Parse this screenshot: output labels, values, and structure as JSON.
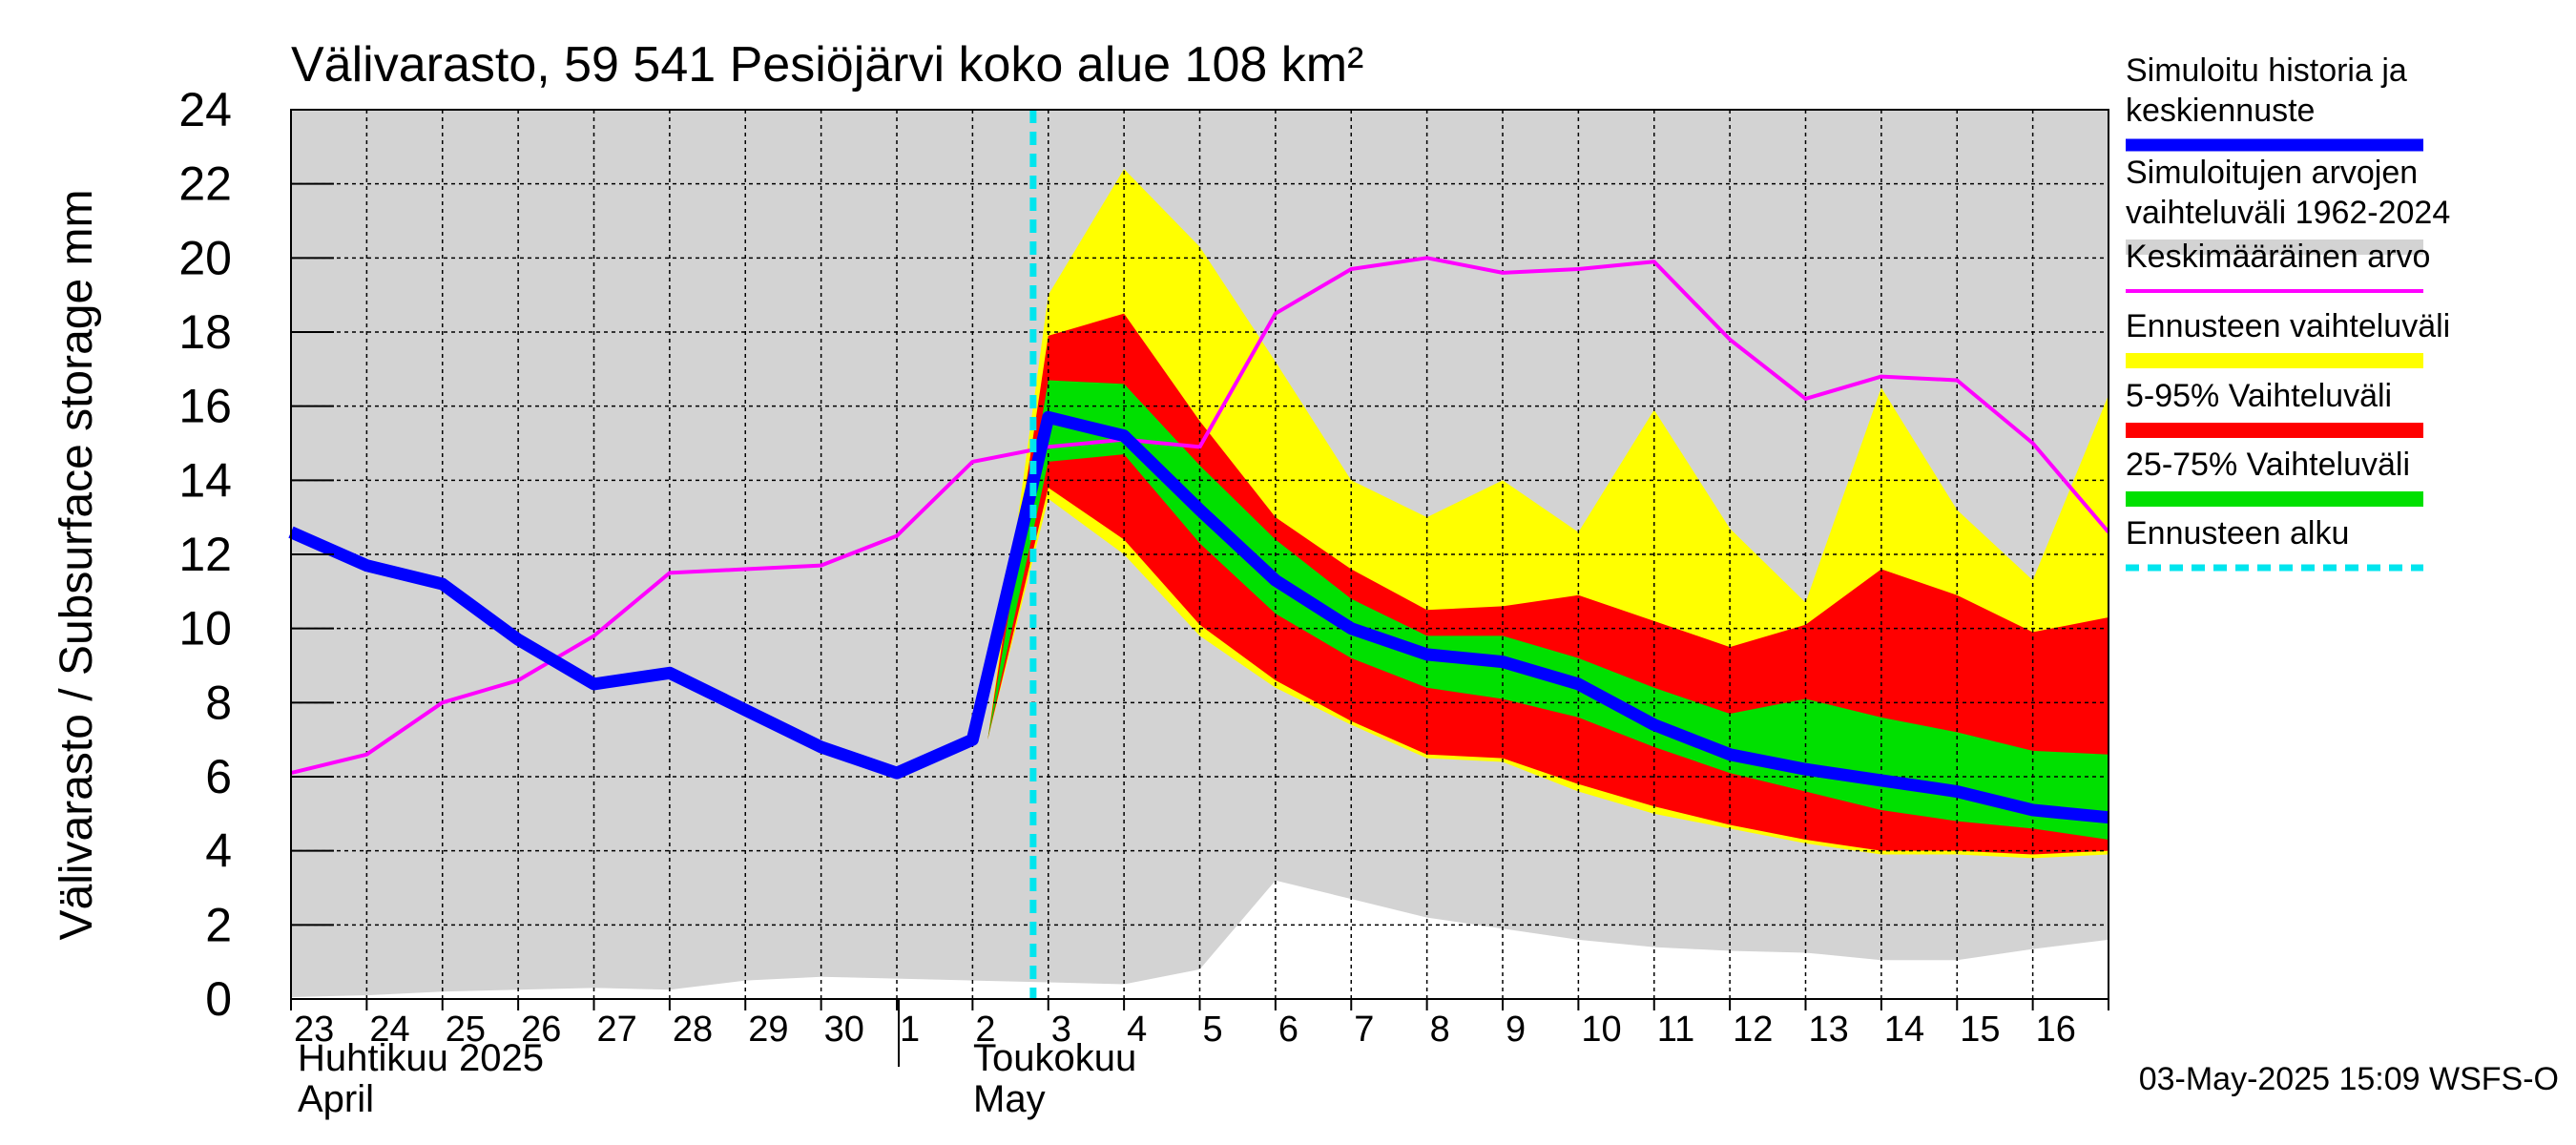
{
  "chart_data": {
    "type": "area",
    "title": "Välivarasto, 59 541 Pesiöjärvi koko alue 108 km²",
    "ylabel": "Välivarasto / Subsurface storage  mm",
    "xlabel": "",
    "ylim": [
      0,
      24
    ],
    "yticks": [
      0,
      2,
      4,
      6,
      8,
      10,
      12,
      14,
      16,
      18,
      20,
      22,
      24
    ],
    "grid": true,
    "legend_position": "right",
    "x_tick_labels": [
      "23",
      "24",
      "25",
      "26",
      "27",
      "28",
      "29",
      "30",
      "1",
      "2",
      "3",
      "4",
      "5",
      "6",
      "7",
      "8",
      "9",
      "10",
      "11",
      "12",
      "13",
      "14",
      "15",
      "16"
    ],
    "month_labels": [
      {
        "fi": "Huhtikuu  2025",
        "en": "April"
      },
      {
        "fi": "Toukokuu",
        "en": "May"
      }
    ],
    "forecast_start_day": 9.8,
    "series": [
      {
        "name": "Simuloitujen arvojen vaihteluväli 1962-2024",
        "color": "#d3d3d3",
        "x": [
          0,
          1,
          2,
          3,
          4,
          5,
          6,
          7,
          8,
          9,
          10,
          11,
          12,
          13,
          14,
          15,
          16,
          17,
          18,
          19,
          20,
          21,
          22,
          23,
          24
        ],
        "lower": [
          0.05,
          0.1,
          0.2,
          0.25,
          0.3,
          0.25,
          0.5,
          0.6,
          0.55,
          0.5,
          0.45,
          0.4,
          0.8,
          3.2,
          2.7,
          2.2,
          1.9,
          1.6,
          1.4,
          1.3,
          1.25,
          1.05,
          1.05,
          1.35,
          1.6
        ],
        "upper": [
          24,
          24,
          24,
          24,
          24,
          24,
          24,
          24,
          24,
          24,
          24,
          24,
          24,
          24,
          24,
          24,
          24,
          24,
          24,
          24,
          24,
          24,
          24,
          24,
          24
        ]
      },
      {
        "name": "Ennusteen vaihteluväli",
        "color": "#ffff00",
        "x": [
          9.2,
          10,
          11,
          12,
          13,
          14,
          15,
          16,
          17,
          18,
          19,
          20,
          21,
          22,
          23,
          24
        ],
        "lower": [
          7.0,
          13.5,
          12.0,
          9.8,
          8.4,
          7.4,
          6.5,
          6.4,
          5.6,
          5.0,
          4.6,
          4.2,
          3.9,
          3.9,
          3.8,
          3.9
        ],
        "upper": [
          7.0,
          19.0,
          22.4,
          20.3,
          17.2,
          14.0,
          13.0,
          14.0,
          12.6,
          15.9,
          12.7,
          10.7,
          16.5,
          13.2,
          11.3,
          16.3
        ]
      },
      {
        "name": "5-95% Vaihteluväli",
        "color": "#ff0000",
        "x": [
          9.2,
          10,
          11,
          12,
          13,
          14,
          15,
          16,
          17,
          18,
          19,
          20,
          21,
          22,
          23,
          24
        ],
        "lower": [
          7.0,
          13.8,
          12.4,
          10.1,
          8.6,
          7.5,
          6.6,
          6.5,
          5.8,
          5.2,
          4.7,
          4.3,
          4.0,
          4.0,
          3.9,
          4.0
        ],
        "upper": [
          7.0,
          17.9,
          18.5,
          15.6,
          13.0,
          11.6,
          10.5,
          10.6,
          10.9,
          10.2,
          9.5,
          10.1,
          11.6,
          10.9,
          9.9,
          10.3
        ]
      },
      {
        "name": "25-75% Vaihteluväli",
        "color": "#00e000",
        "x": [
          9.2,
          10,
          11,
          12,
          13,
          14,
          15,
          16,
          17,
          18,
          19,
          20,
          21,
          22,
          23,
          24
        ],
        "lower": [
          7.0,
          14.5,
          14.7,
          12.3,
          10.4,
          9.2,
          8.4,
          8.1,
          7.6,
          6.8,
          6.1,
          5.6,
          5.1,
          4.8,
          4.6,
          4.3
        ],
        "upper": [
          7.0,
          16.7,
          16.6,
          14.4,
          12.4,
          10.8,
          9.8,
          9.8,
          9.2,
          8.4,
          7.7,
          8.1,
          7.6,
          7.2,
          6.7,
          6.6
        ]
      },
      {
        "name": "Keskimääräinen arvo",
        "color": "#ff00ff",
        "x": [
          0,
          1,
          2,
          3,
          4,
          5,
          6,
          7,
          8,
          9,
          10,
          11,
          12,
          13,
          14,
          15,
          16,
          17,
          18,
          19,
          20,
          21,
          22,
          23,
          24
        ],
        "values": [
          6.1,
          6.6,
          8.0,
          8.6,
          9.8,
          11.5,
          11.6,
          11.7,
          12.5,
          14.5,
          14.9,
          15.1,
          14.9,
          18.5,
          19.7,
          20.0,
          19.6,
          19.7,
          19.9,
          17.8,
          16.2,
          16.8,
          16.7,
          15.0,
          12.6
        ]
      },
      {
        "name": "Simuloitu historia ja keskiennuste",
        "color": "#0000ff",
        "x": [
          0,
          1,
          2,
          3,
          4,
          5,
          6,
          7,
          8,
          9,
          10,
          11,
          12,
          13,
          14,
          15,
          16,
          17,
          18,
          19,
          20,
          21,
          22,
          23,
          24
        ],
        "values": [
          12.6,
          11.7,
          11.2,
          9.7,
          8.5,
          8.8,
          7.8,
          6.8,
          6.1,
          7.0,
          15.7,
          15.2,
          13.2,
          11.3,
          10.0,
          9.3,
          9.1,
          8.5,
          7.4,
          6.6,
          6.2,
          5.9,
          5.6,
          5.1,
          4.9
        ]
      }
    ],
    "legend": [
      {
        "label": "Simuloitu historia ja keskiennuste",
        "color": "#0000ff",
        "style": "thick-line"
      },
      {
        "label": "Simuloitujen arvojen vaihteluväli 1962-2024",
        "color": "#d3d3d3",
        "style": "band"
      },
      {
        "label": "Keskimääräinen arvo",
        "color": "#ff00ff",
        "style": "line"
      },
      {
        "label": "Ennusteen vaihteluväli",
        "color": "#ffff00",
        "style": "band"
      },
      {
        "label": "5-95% Vaihteluväli",
        "color": "#ff0000",
        "style": "band"
      },
      {
        "label": "25-75% Vaihteluväli",
        "color": "#00e000",
        "style": "band"
      },
      {
        "label": "Ennusteen alku",
        "color": "#00e5ee",
        "style": "dashed"
      }
    ],
    "timestamp": "03-May-2025 15:09 WSFS-O"
  }
}
